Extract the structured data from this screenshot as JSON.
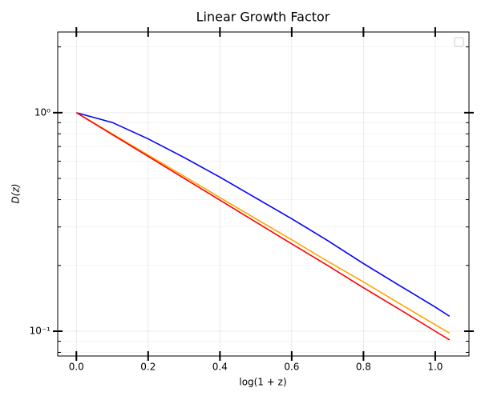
{
  "chart_data": {
    "type": "line",
    "title": "Linear Growth Factor",
    "xlabel": "log(1 + z)",
    "ylabel": "D(z)",
    "x": [
      0,
      0.1,
      0.2,
      0.3,
      0.4,
      0.5,
      0.6,
      0.7,
      0.8,
      0.9,
      1.0,
      1.04
    ],
    "series": [
      {
        "color": "#0000ff",
        "values": [
          1,
          0.902,
          0.759,
          0.624,
          0.507,
          0.407,
          0.327,
          0.26,
          0.204,
          0.162,
          0.129,
          0.117
        ]
      },
      {
        "color": "#ffa500",
        "values": [
          1,
          0.8,
          0.64,
          0.512,
          0.409,
          0.327,
          0.262,
          0.209,
          0.168,
          0.134,
          0.107,
          0.098
        ]
      },
      {
        "color": "#ff0000",
        "values": [
          1,
          0.794,
          0.631,
          0.501,
          0.398,
          0.316,
          0.251,
          0.2,
          0.158,
          0.126,
          0.1,
          0.0912
        ]
      }
    ],
    "xlim": [
      -0.052,
      1.094
    ],
    "xticks": [
      {
        "value": 0,
        "label": "0.0"
      },
      0.2,
      0.4,
      0.6,
      0.8,
      {
        "value": 1,
        "label": "1.0"
      }
    ],
    "ylim": [
      0.077,
      2.34
    ],
    "ylog": true,
    "yticks": [
      {
        "value": 0.1,
        "label": "10⁻¹"
      },
      {
        "value": 1,
        "label": "10⁰"
      }
    ],
    "yminorticks": [
      0.08,
      0.09,
      0.2,
      0.3,
      0.4,
      0.5,
      0.6,
      0.7,
      0.8,
      0.9,
      2
    ],
    "grid": true
  }
}
